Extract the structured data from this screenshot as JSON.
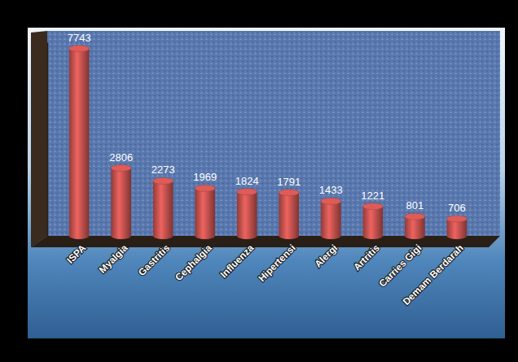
{
  "chart_data": {
    "type": "bar",
    "categories": [
      "ISPA",
      "Myalgia",
      "Gastritis",
      "Cephalgia",
      "Influenza",
      "Hipertensi",
      "Alergi",
      "Artritis",
      "Carries Gigi",
      "Demam Berdarah"
    ],
    "values": [
      7743,
      2806,
      2273,
      1969,
      1824,
      1791,
      1433,
      1221,
      801,
      706
    ],
    "color": "#c0504d",
    "ylim": [
      0,
      8000
    ],
    "grid": false,
    "data_labels": true,
    "tick_labels": "x"
  }
}
